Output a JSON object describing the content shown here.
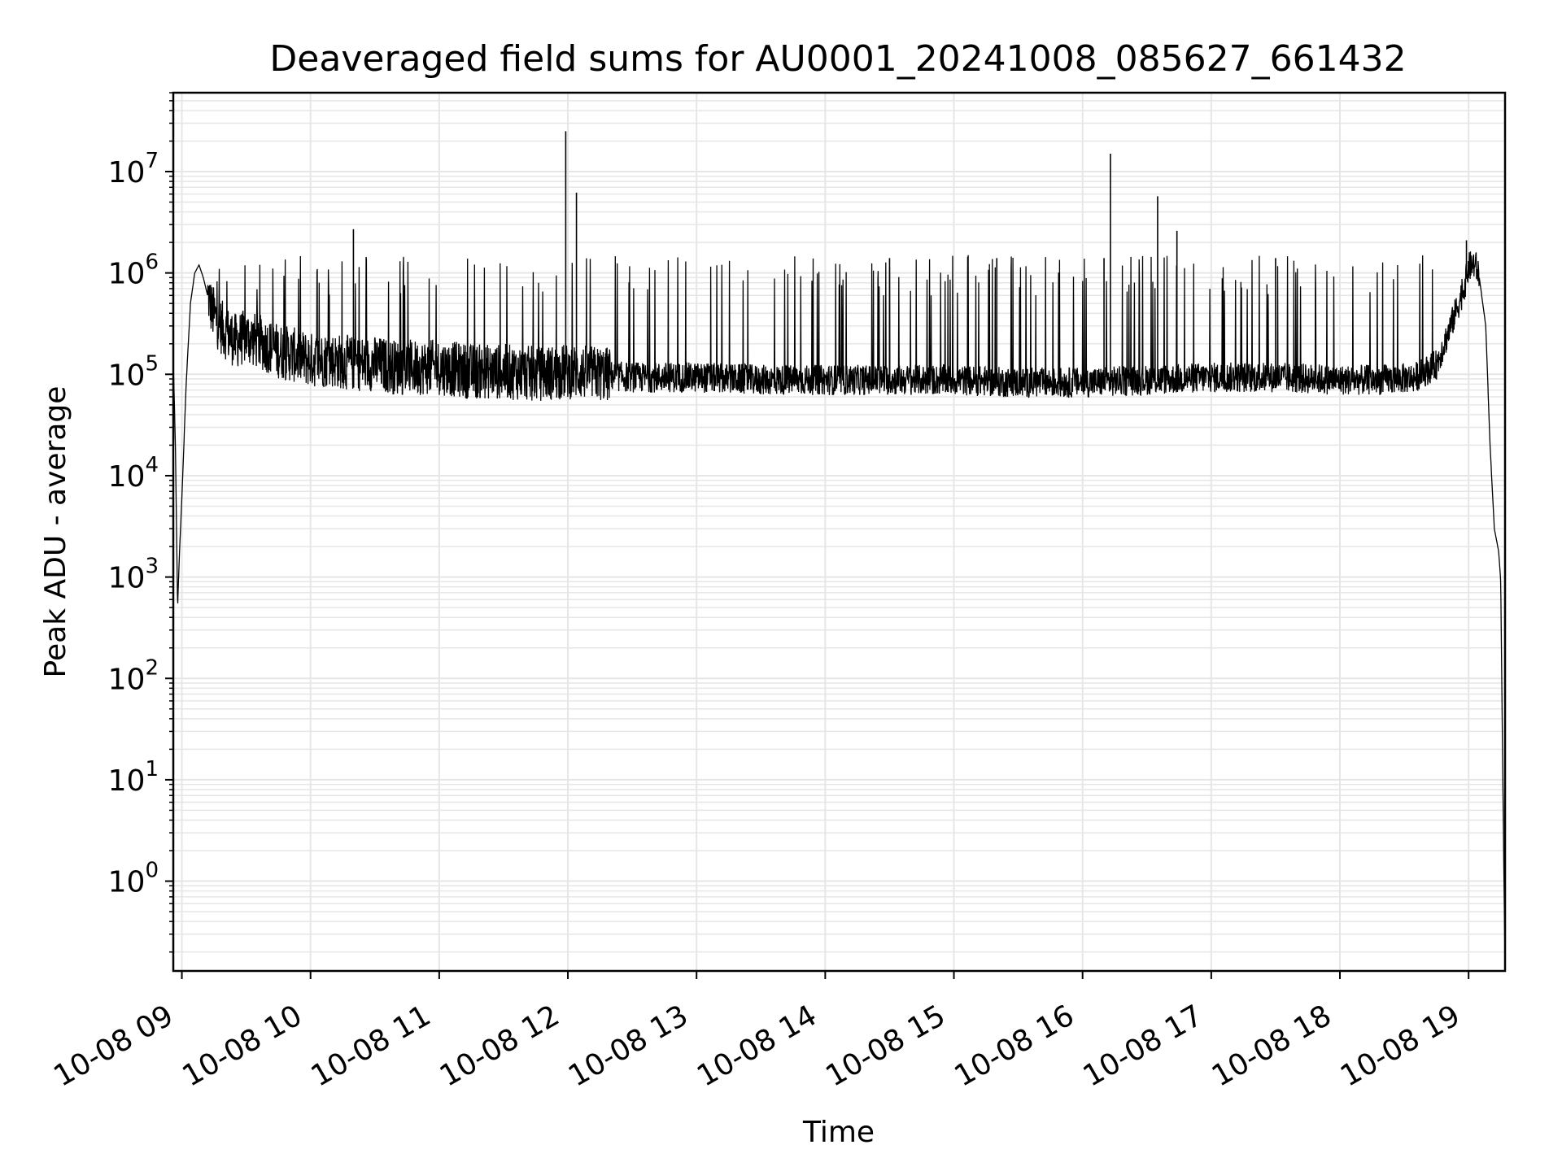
{
  "chart_data": {
    "type": "line",
    "title": "Deaveraged field sums for AU0001_20241008_085627_661432",
    "xlabel": "Time",
    "ylabel": "Peak ADU - average",
    "y_scale": "log",
    "ylim": [
      0.13,
      60000000
    ],
    "xlim": [
      "2024-10-08 08:56",
      "2024-10-08 19:17"
    ],
    "grid": true,
    "line_color": "#000000",
    "x_ticks": [
      {
        "label": "10-08 09",
        "value": "2024-10-08 09:00"
      },
      {
        "label": "10-08 10",
        "value": "2024-10-08 10:00"
      },
      {
        "label": "10-08 11",
        "value": "2024-10-08 11:00"
      },
      {
        "label": "10-08 12",
        "value": "2024-10-08 12:00"
      },
      {
        "label": "10-08 13",
        "value": "2024-10-08 13:00"
      },
      {
        "label": "10-08 14",
        "value": "2024-10-08 14:00"
      },
      {
        "label": "10-08 15",
        "value": "2024-10-08 15:00"
      },
      {
        "label": "10-08 16",
        "value": "2024-10-08 16:00"
      },
      {
        "label": "10-08 17",
        "value": "2024-10-08 17:00"
      },
      {
        "label": "10-08 18",
        "value": "2024-10-08 18:00"
      },
      {
        "label": "10-08 19",
        "value": "2024-10-08 19:00"
      }
    ],
    "y_ticks": [
      {
        "base": "10",
        "exp": "0",
        "value": 1
      },
      {
        "base": "10",
        "exp": "1",
        "value": 10
      },
      {
        "base": "10",
        "exp": "2",
        "value": 100
      },
      {
        "base": "10",
        "exp": "3",
        "value": 1000
      },
      {
        "base": "10",
        "exp": "4",
        "value": 10000
      },
      {
        "base": "10",
        "exp": "5",
        "value": 100000
      },
      {
        "base": "10",
        "exp": "6",
        "value": 1000000
      },
      {
        "base": "10",
        "exp": "7",
        "value": 10000000
      }
    ],
    "series": [
      {
        "x": [
          "2024-10-08 08:56",
          "2024-10-08 08:57",
          "2024-10-08 08:58",
          "2024-10-08 08:59",
          "2024-10-08 09:00",
          "2024-10-08 09:02",
          "2024-10-08 09:04",
          "2024-10-08 09:06",
          "2024-10-08 09:08",
          "2024-10-08 09:10",
          "2024-10-08 09:12",
          "2024-10-08 09:14",
          "2024-10-08 09:17",
          "2024-10-08 09:20",
          "2024-10-08 09:25",
          "2024-10-08 09:30",
          "2024-10-08 09:35",
          "2024-10-08 09:40",
          "2024-10-08 09:45",
          "2024-10-08 09:50",
          "2024-10-08 09:55",
          "2024-10-08 10:00",
          "2024-10-08 10:10",
          "2024-10-08 10:20",
          "2024-10-08 10:30",
          "2024-10-08 10:40",
          "2024-10-08 10:50",
          "2024-10-08 11:00",
          "2024-10-08 11:15",
          "2024-10-08 11:30",
          "2024-10-08 11:45",
          "2024-10-08 12:00",
          "2024-10-08 12:15",
          "2024-10-08 12:30",
          "2024-10-08 13:00",
          "2024-10-08 13:30",
          "2024-10-08 14:00",
          "2024-10-08 14:30",
          "2024-10-08 15:00",
          "2024-10-08 15:30",
          "2024-10-08 16:00",
          "2024-10-08 16:30",
          "2024-10-08 17:00",
          "2024-10-08 17:30",
          "2024-10-08 18:00",
          "2024-10-08 18:20",
          "2024-10-08 18:35",
          "2024-10-08 18:45",
          "2024-10-08 18:52",
          "2024-10-08 18:58",
          "2024-10-08 19:00",
          "2024-10-08 19:03",
          "2024-10-08 19:05",
          "2024-10-08 19:08",
          "2024-10-08 19:10",
          "2024-10-08 19:12",
          "2024-10-08 19:14",
          "2024-10-08 19:15",
          "2024-10-08 19:16",
          "2024-10-08 19:17"
        ],
        "y": [
          130000,
          20000,
          500,
          2000,
          6000,
          80000,
          500000,
          1000000,
          1200000,
          900000,
          600000,
          400000,
          300000,
          250000,
          200000,
          220000,
          200000,
          180000,
          160000,
          150000,
          140000,
          130000,
          130000,
          120000,
          120000,
          110000,
          110000,
          110000,
          100000,
          100000,
          95000,
          100000,
          95000,
          90000,
          90000,
          85000,
          85000,
          85000,
          85000,
          80000,
          80000,
          85000,
          90000,
          90000,
          85000,
          85000,
          90000,
          120000,
          300000,
          700000,
          1100000,
          1200000,
          900000,
          300000,
          20000,
          3000,
          1800,
          900,
          8,
          0.15
        ]
      }
    ],
    "spikes": [
      {
        "x": "2024-10-08 10:20",
        "y": 2700000
      },
      {
        "x": "2024-10-08 11:59",
        "y": 25000000
      },
      {
        "x": "2024-10-08 12:04",
        "y": 6200000
      },
      {
        "x": "2024-10-08 14:30",
        "y": 1400000
      },
      {
        "x": "2024-10-08 15:20",
        "y": 1400000
      },
      {
        "x": "2024-10-08 16:10",
        "y": 1400000
      },
      {
        "x": "2024-10-08 16:13",
        "y": 15000000
      },
      {
        "x": "2024-10-08 16:35",
        "y": 5700000
      },
      {
        "x": "2024-10-08 16:44",
        "y": 2600000
      },
      {
        "x": "2024-10-08 17:30",
        "y": 1400000
      },
      {
        "x": "2024-10-08 18:59",
        "y": 2100000
      }
    ]
  }
}
